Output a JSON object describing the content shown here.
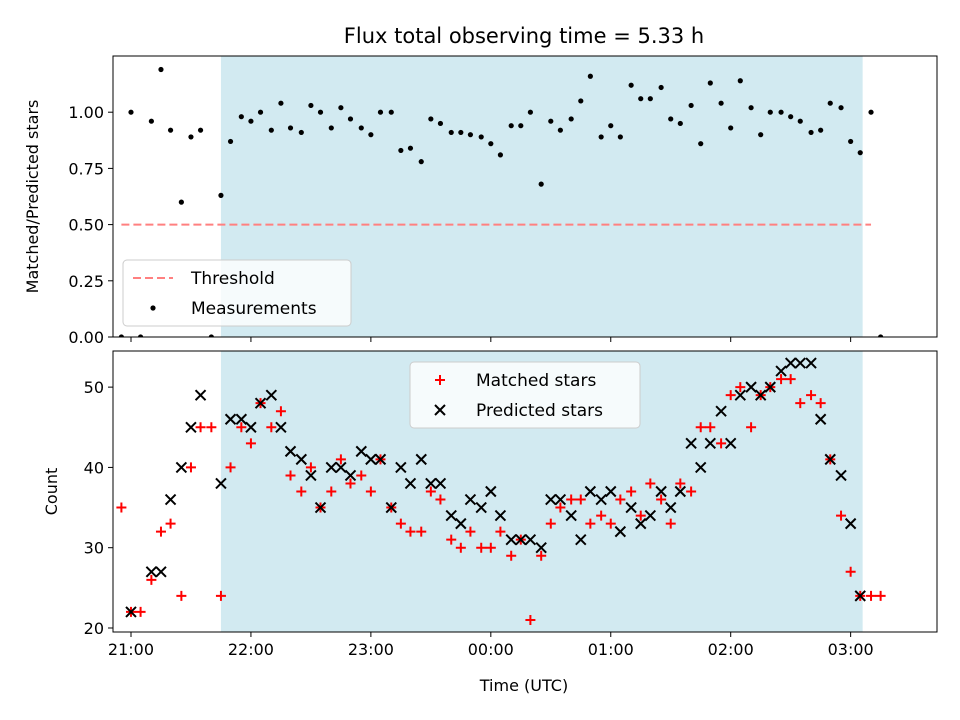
{
  "chart_data": [
    {
      "type": "scatter",
      "title": "Flux total observing time = 5.33 h",
      "ylabel": "Matched/Predicted stars",
      "xlabel": "",
      "xlim": [
        -0.15,
        6.72
      ],
      "ylim": [
        0,
        1.25
      ],
      "x_ticks": [
        0,
        1,
        2,
        3,
        4,
        5,
        6
      ],
      "x_tick_labels": [
        "",
        "",
        "",
        "",
        "",
        "",
        ""
      ],
      "y_ticks": [
        0,
        0.25,
        0.5,
        0.75,
        1.0
      ],
      "y_tick_labels": [
        "0.00",
        "0.25",
        "0.50",
        "0.75",
        "1.00"
      ],
      "shaded_span": {
        "x0": 0.75,
        "x1": 6.1,
        "color": "#add8e6"
      },
      "threshold": {
        "name": "Threshold",
        "y": 0.5,
        "x0": -0.08,
        "x1": 6.17,
        "color": "#ff8080",
        "style": "dashed"
      },
      "legend": {
        "location": "lower-left",
        "entries": [
          "Threshold",
          "Measurements"
        ]
      },
      "series": [
        {
          "name": "Measurements",
          "marker": "dot",
          "color": "#000000",
          "points": [
            [
              -0.08,
              0.0
            ],
            [
              0.0,
              1.0
            ],
            [
              0.08,
              0.0
            ],
            [
              0.17,
              0.96
            ],
            [
              0.25,
              1.19
            ],
            [
              0.33,
              0.92
            ],
            [
              0.42,
              0.6
            ],
            [
              0.5,
              0.89
            ],
            [
              0.58,
              0.92
            ],
            [
              0.67,
              0.0
            ],
            [
              0.75,
              0.63
            ],
            [
              0.83,
              0.87
            ],
            [
              0.92,
              0.98
            ],
            [
              1.0,
              0.96
            ],
            [
              1.08,
              1.0
            ],
            [
              1.17,
              0.92
            ],
            [
              1.25,
              1.04
            ],
            [
              1.33,
              0.93
            ],
            [
              1.42,
              0.91
            ],
            [
              1.5,
              1.03
            ],
            [
              1.58,
              1.0
            ],
            [
              1.67,
              0.93
            ],
            [
              1.75,
              1.02
            ],
            [
              1.83,
              0.97
            ],
            [
              1.92,
              0.93
            ],
            [
              2.0,
              0.9
            ],
            [
              2.08,
              1.0
            ],
            [
              2.17,
              1.0
            ],
            [
              2.25,
              0.83
            ],
            [
              2.33,
              0.84
            ],
            [
              2.42,
              0.78
            ],
            [
              2.5,
              0.97
            ],
            [
              2.58,
              0.95
            ],
            [
              2.67,
              0.91
            ],
            [
              2.75,
              0.91
            ],
            [
              2.83,
              0.9
            ],
            [
              2.92,
              0.89
            ],
            [
              3.0,
              0.86
            ],
            [
              3.08,
              0.81
            ],
            [
              3.17,
              0.94
            ],
            [
              3.25,
              0.94
            ],
            [
              3.33,
              1.0
            ],
            [
              3.42,
              0.68
            ],
            [
              3.5,
              0.96
            ],
            [
              3.58,
              0.92
            ],
            [
              3.67,
              0.97
            ],
            [
              3.75,
              1.05
            ],
            [
              3.83,
              1.16
            ],
            [
              3.92,
              0.89
            ],
            [
              4.0,
              0.94
            ],
            [
              4.08,
              0.89
            ],
            [
              4.17,
              1.12
            ],
            [
              4.25,
              1.06
            ],
            [
              4.33,
              1.06
            ],
            [
              4.42,
              1.11
            ],
            [
              4.5,
              0.97
            ],
            [
              4.58,
              0.95
            ],
            [
              4.67,
              1.03
            ],
            [
              4.75,
              0.86
            ],
            [
              4.83,
              1.13
            ],
            [
              4.92,
              1.04
            ],
            [
              5.0,
              0.93
            ],
            [
              5.08,
              1.14
            ],
            [
              5.17,
              1.02
            ],
            [
              5.25,
              0.9
            ],
            [
              5.33,
              1.0
            ],
            [
              5.42,
              1.0
            ],
            [
              5.5,
              0.98
            ],
            [
              5.58,
              0.96
            ],
            [
              5.67,
              0.91
            ],
            [
              5.75,
              0.92
            ],
            [
              5.83,
              1.04
            ],
            [
              5.92,
              1.02
            ],
            [
              6.0,
              0.87
            ],
            [
              6.08,
              0.82
            ],
            [
              6.17,
              1.0
            ],
            [
              6.25,
              0.0
            ]
          ]
        }
      ]
    },
    {
      "type": "scatter",
      "title": "",
      "ylabel": "Count",
      "xlabel": "Time (UTC)",
      "xlim": [
        -0.15,
        6.72
      ],
      "ylim": [
        19.5,
        54.5
      ],
      "x_ticks": [
        0,
        1,
        2,
        3,
        4,
        5,
        6
      ],
      "x_tick_labels": [
        "21:00",
        "22:00",
        "23:00",
        "00:00",
        "01:00",
        "02:00",
        "03:00"
      ],
      "y_ticks": [
        20,
        30,
        40,
        50
      ],
      "y_tick_labels": [
        "20",
        "30",
        "40",
        "50"
      ],
      "shaded_span": {
        "x0": 0.75,
        "x1": 6.1,
        "color": "#add8e6"
      },
      "legend": {
        "location": "top-center",
        "entries": [
          "Matched stars",
          "Predicted stars"
        ]
      },
      "series": [
        {
          "name": "Matched stars",
          "marker": "plus",
          "color": "#ff0000",
          "points": [
            [
              -0.08,
              35
            ],
            [
              0.0,
              22
            ],
            [
              0.08,
              22
            ],
            [
              0.17,
              26
            ],
            [
              0.25,
              32
            ],
            [
              0.33,
              33
            ],
            [
              0.42,
              24
            ],
            [
              0.5,
              40
            ],
            [
              0.58,
              45
            ],
            [
              0.67,
              45
            ],
            [
              0.75,
              24
            ],
            [
              0.83,
              40
            ],
            [
              0.92,
              45
            ],
            [
              1.0,
              43
            ],
            [
              1.08,
              48
            ],
            [
              1.17,
              45
            ],
            [
              1.25,
              47
            ],
            [
              1.33,
              39
            ],
            [
              1.42,
              37
            ],
            [
              1.5,
              40
            ],
            [
              1.58,
              35
            ],
            [
              1.67,
              37
            ],
            [
              1.75,
              41
            ],
            [
              1.83,
              38
            ],
            [
              1.92,
              39
            ],
            [
              2.0,
              37
            ],
            [
              2.08,
              41
            ],
            [
              2.17,
              35
            ],
            [
              2.25,
              33
            ],
            [
              2.33,
              32
            ],
            [
              2.42,
              32
            ],
            [
              2.5,
              37
            ],
            [
              2.58,
              36
            ],
            [
              2.67,
              31
            ],
            [
              2.75,
              30
            ],
            [
              2.83,
              32
            ],
            [
              2.92,
              30
            ],
            [
              3.0,
              30
            ],
            [
              3.08,
              32
            ],
            [
              3.17,
              29
            ],
            [
              3.25,
              31
            ],
            [
              3.33,
              21
            ],
            [
              3.42,
              29
            ],
            [
              3.5,
              33
            ],
            [
              3.58,
              35
            ],
            [
              3.67,
              36
            ],
            [
              3.75,
              36
            ],
            [
              3.83,
              33
            ],
            [
              3.92,
              34
            ],
            [
              4.0,
              33
            ],
            [
              4.08,
              36
            ],
            [
              4.17,
              37
            ],
            [
              4.25,
              34
            ],
            [
              4.33,
              38
            ],
            [
              4.42,
              36
            ],
            [
              4.5,
              33
            ],
            [
              4.58,
              38
            ],
            [
              4.67,
              37
            ],
            [
              4.75,
              45
            ],
            [
              4.83,
              45
            ],
            [
              4.92,
              43
            ],
            [
              5.0,
              49
            ],
            [
              5.08,
              50
            ],
            [
              5.17,
              45
            ],
            [
              5.25,
              49
            ],
            [
              5.33,
              50
            ],
            [
              5.42,
              51
            ],
            [
              5.5,
              51
            ],
            [
              5.58,
              48
            ],
            [
              5.67,
              49
            ],
            [
              5.75,
              48
            ],
            [
              5.83,
              41
            ],
            [
              5.92,
              34
            ],
            [
              6.0,
              27
            ],
            [
              6.08,
              24
            ],
            [
              6.17,
              24
            ],
            [
              6.25,
              24
            ]
          ]
        },
        {
          "name": "Predicted stars",
          "marker": "x",
          "color": "#000000",
          "points": [
            [
              0.0,
              22
            ],
            [
              0.17,
              27
            ],
            [
              0.25,
              27
            ],
            [
              0.33,
              36
            ],
            [
              0.42,
              40
            ],
            [
              0.5,
              45
            ],
            [
              0.58,
              49
            ],
            [
              0.75,
              38
            ],
            [
              0.83,
              46
            ],
            [
              0.92,
              46
            ],
            [
              1.0,
              45
            ],
            [
              1.08,
              48
            ],
            [
              1.17,
              49
            ],
            [
              1.25,
              45
            ],
            [
              1.33,
              42
            ],
            [
              1.42,
              41
            ],
            [
              1.5,
              39
            ],
            [
              1.58,
              35
            ],
            [
              1.67,
              40
            ],
            [
              1.75,
              40
            ],
            [
              1.83,
              39
            ],
            [
              1.92,
              42
            ],
            [
              2.0,
              41
            ],
            [
              2.08,
              41
            ],
            [
              2.17,
              35
            ],
            [
              2.25,
              40
            ],
            [
              2.33,
              38
            ],
            [
              2.42,
              41
            ],
            [
              2.5,
              38
            ],
            [
              2.58,
              38
            ],
            [
              2.67,
              34
            ],
            [
              2.75,
              33
            ],
            [
              2.83,
              36
            ],
            [
              2.92,
              35
            ],
            [
              3.0,
              37
            ],
            [
              3.08,
              34
            ],
            [
              3.17,
              31
            ],
            [
              3.25,
              31
            ],
            [
              3.33,
              31
            ],
            [
              3.42,
              30
            ],
            [
              3.5,
              36
            ],
            [
              3.58,
              36
            ],
            [
              3.67,
              34
            ],
            [
              3.75,
              31
            ],
            [
              3.83,
              37
            ],
            [
              3.92,
              36
            ],
            [
              4.0,
              37
            ],
            [
              4.08,
              32
            ],
            [
              4.17,
              35
            ],
            [
              4.25,
              33
            ],
            [
              4.33,
              34
            ],
            [
              4.42,
              37
            ],
            [
              4.5,
              35
            ],
            [
              4.58,
              37
            ],
            [
              4.67,
              43
            ],
            [
              4.75,
              40
            ],
            [
              4.83,
              43
            ],
            [
              4.92,
              47
            ],
            [
              5.0,
              43
            ],
            [
              5.08,
              49
            ],
            [
              5.17,
              50
            ],
            [
              5.25,
              49
            ],
            [
              5.33,
              50
            ],
            [
              5.42,
              52
            ],
            [
              5.5,
              53
            ],
            [
              5.58,
              53
            ],
            [
              5.67,
              53
            ],
            [
              5.75,
              46
            ],
            [
              5.83,
              41
            ],
            [
              5.92,
              39
            ],
            [
              6.0,
              33
            ],
            [
              6.08,
              24
            ]
          ]
        }
      ]
    }
  ]
}
